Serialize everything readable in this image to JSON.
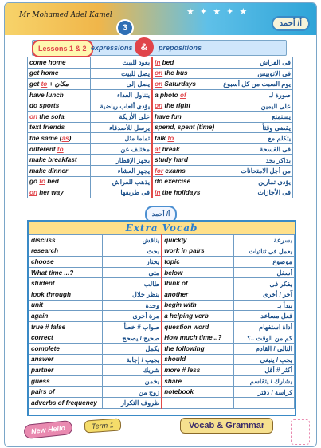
{
  "header": {
    "author": "Mr Mohamed Adel Kamel",
    "lesson_number": "3",
    "badge": "أ/ أحمد",
    "sub_badge": "أ/ أحمد"
  },
  "title_bar": {
    "left": "Lessons 1 & 2",
    "mid": "expressions",
    "amp": "&",
    "right": "prepositions"
  },
  "table1": [
    {
      "en1": "come home",
      "ar1": "يعود للبيت",
      "en2": "in bed",
      "ar2": "فى الفراش",
      "p1": "",
      "p2": "in"
    },
    {
      "en1": "get home",
      "ar1": "يصل للبيت",
      "en2": "on the bus",
      "ar2": "فى الاتوبيس",
      "p1": "",
      "p2": "on"
    },
    {
      "en1": "get to + مكان",
      "ar1": "يصل إلى",
      "en2": "on Saturdays",
      "ar2": "يوم السبت من كل أسبوع",
      "p1": "to",
      "p2": "on"
    },
    {
      "en1": "have lunch",
      "ar1": "يتناول الغداء",
      "en2": "a photo of",
      "ar2": "صورة لـ",
      "p1": "",
      "p2": "of"
    },
    {
      "en1": "do sports",
      "ar1": "يؤدى ألعاب رياضية",
      "en2": "on the right",
      "ar2": "على اليمين",
      "p1": "",
      "p2": "on"
    },
    {
      "en1": "on the sofa",
      "ar1": "على الأريكة",
      "en2": "have fun",
      "ar2": "يستمتع",
      "p1": "on",
      "p2": ""
    },
    {
      "en1": "text friends",
      "ar1": "يرسل للأصدقاء",
      "en2": "spend, spent (time)",
      "ar2": "يقضى وقتاً",
      "p1": "",
      "p2": ""
    },
    {
      "en1": "the same (as)",
      "ar1": "تماما مثل",
      "en2": "talk to",
      "ar2": "يتكلم مع",
      "p1": "as",
      "p2": "to"
    },
    {
      "en1": "different to",
      "ar1": "مختلف عن",
      "en2": "at break",
      "ar2": "فى الفسحة",
      "p1": "to",
      "p2": "at"
    },
    {
      "en1": "make breakfast",
      "ar1": "يجهز الإفطار",
      "en2": "study hard",
      "ar2": "يذاكر بجد",
      "p1": "",
      "p2": ""
    },
    {
      "en1": "make dinner",
      "ar1": "يجهز العشاء",
      "en2": "for exams",
      "ar2": "من أجل الامتحانات",
      "p1": "",
      "p2": "for"
    },
    {
      "en1": "go to bed",
      "ar1": "يذهب للفراش",
      "en2": "do exercise",
      "ar2": "يؤدى تمارين",
      "p1": "to",
      "p2": ""
    },
    {
      "en1": "on her way",
      "ar1": "فى طريقها",
      "en2": "in the holidays",
      "ar2": "فى الأجازات",
      "p1": "on",
      "p2": "in"
    }
  ],
  "extra": {
    "title": "Extra Vocab",
    "rows": [
      {
        "en1": "discuss",
        "ar1": "يناقش",
        "en2": "quickly",
        "ar2": "بسرعة"
      },
      {
        "en1": "research",
        "ar1": "بحث",
        "en2": "work in pairs",
        "ar2": "يعمل فى ثنائيات"
      },
      {
        "en1": "choose",
        "ar1": "يختار",
        "en2": "topic",
        "ar2": "موضوع"
      },
      {
        "en1": "What time ...?",
        "ar1": "متى",
        "en2": "below",
        "ar2": "أسفل"
      },
      {
        "en1": "student",
        "ar1": "طالب",
        "en2": "think of",
        "ar2": "يفكر فى"
      },
      {
        "en1": "look through",
        "ar1": "ينظر خلال",
        "en2": "another",
        "ar2": "آخر / أخرى"
      },
      {
        "en1": "unit",
        "ar1": "وحدة",
        "en2": "begin with",
        "ar2": "يبدأ بـ"
      },
      {
        "en1": "again",
        "ar1": "مرة أخرى",
        "en2": "a helping verb",
        "ar2": "فعل مساعد"
      },
      {
        "en1": "true # false",
        "ar1": "صواب # خطأ",
        "en2": "question word",
        "ar2": "أداة استفهام"
      },
      {
        "en1": "correct",
        "ar1": "صحيح / يصحح",
        "en2": "How much time...?",
        "ar2": "كم من الوقت ..؟"
      },
      {
        "en1": "complete",
        "ar1": "يكمل",
        "en2": "the following",
        "ar2": "التالى / القادم"
      },
      {
        "en1": "answer",
        "ar1": "يجيب / إجابة",
        "en2": "should",
        "ar2": "يجب / ينبغى"
      },
      {
        "en1": "partner",
        "ar1": "شريك",
        "en2": "more # less",
        "ar2": "أكثر # أقل"
      },
      {
        "en1": "guess",
        "ar1": "يخمن",
        "en2": "share",
        "ar2": "يشارك / يتقاسم"
      },
      {
        "en1": "pairs of",
        "ar1": "زوج من",
        "en2": "notebook",
        "ar2": "كراسة / دفتر"
      },
      {
        "en1": "adverbs of frequency",
        "ar1": "ظروف التكرار",
        "en2": "",
        "ar2": ""
      }
    ]
  },
  "footer": {
    "book": "New Hello",
    "term": "Term 1",
    "section": "Vocab & Grammar"
  },
  "colors": {
    "accent": "#e0444a",
    "blue": "#1a4f8a",
    "border": "#6f9cc4"
  }
}
